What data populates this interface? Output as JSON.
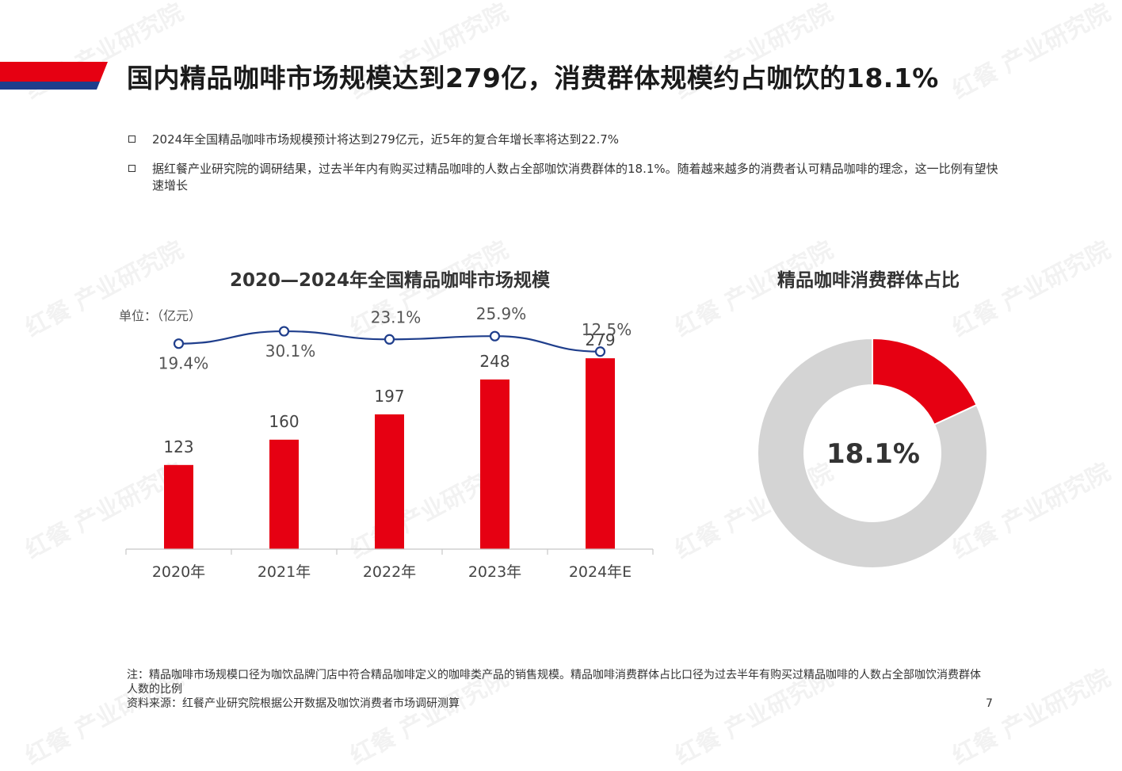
{
  "slide": {
    "title": "国内精品咖啡市场规模达到279亿，消费群体规模约占咖饮的18.1%",
    "bullets": [
      "2024年全国精品咖啡市场规模预计将达到279亿元，近5年的复合年增长率将达到22.7%",
      "据红餐产业研究院的调研结果，过去半年内有购买过精品咖啡的人数占全部咖饮消费群体的18.1%。随着越来越多的消费者认可精品咖啡的理念，这一比例有望快速增长"
    ],
    "note_lines": [
      "注：精品咖啡市场规模口径为咖饮品牌门店中符合精品咖啡定义的咖啡类产品的销售规模。精品咖啡消费群体占比口径为过去半年有购买过精品咖啡的人数占全部咖饮消费群体人数的比例",
      "资料来源：红餐产业研究院根据公开数据及咖饮消费者市场调研测算"
    ],
    "page_number": "7",
    "watermark": "红餐 产业研究院",
    "colors": {
      "red": "#e60012",
      "navy": "#1f3e8c",
      "gray": "#d4d4d4"
    }
  },
  "chart_data": [
    {
      "type": "bar",
      "title": "2020—2024年全国精品咖啡市场规模",
      "unit_label": "单位：（亿元）",
      "categories": [
        "2020年",
        "2021年",
        "2022年",
        "2023年",
        "2024年E"
      ],
      "series": [
        {
          "values": [
            123,
            160,
            197,
            248,
            279
          ],
          "color": "#e60012"
        },
        {
          "type": "line",
          "values": [
            "19.4%",
            "30.1%",
            "23.1%",
            "25.9%",
            "12.5%"
          ],
          "numeric": [
            19.4,
            30.1,
            23.1,
            25.9,
            12.5
          ],
          "color": "#1f3e8c"
        }
      ],
      "ylim": [
        0,
        300
      ],
      "grid": false,
      "legend": "none"
    },
    {
      "type": "pie",
      "title": "精品咖啡消费群体占比",
      "center_label": "18.1%",
      "slices": [
        {
          "value": 18.1,
          "color": "#e60012"
        },
        {
          "value": 81.9,
          "color": "#d4d4d4"
        }
      ]
    }
  ]
}
